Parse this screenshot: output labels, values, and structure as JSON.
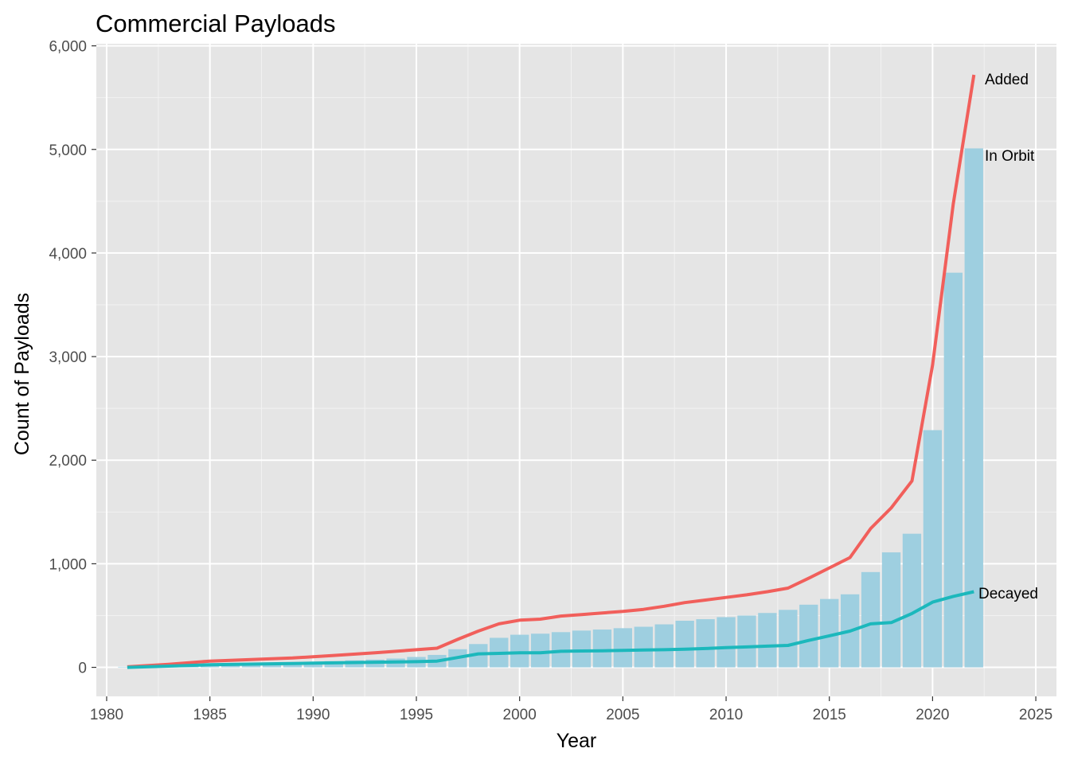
{
  "chart_data": {
    "type": "bar+line",
    "title": "Commercial Payloads",
    "xlabel": "Year",
    "ylabel": "Count of Payloads",
    "xlim": [
      1979.5,
      2026
    ],
    "ylim": [
      -280,
      6020
    ],
    "x_ticks": [
      1980,
      1985,
      1990,
      1995,
      2000,
      2005,
      2010,
      2015,
      2020,
      2025
    ],
    "x_tick_labels": [
      "1980",
      "1985",
      "1990",
      "1995",
      "2000",
      "2005",
      "2010",
      "2015",
      "2020",
      "2025"
    ],
    "y_ticks": [
      0,
      1000,
      2000,
      3000,
      4000,
      5000,
      6000
    ],
    "y_tick_labels": [
      "0",
      "1,000",
      "2,000",
      "3,000",
      "4,000",
      "5,000",
      "6,000"
    ],
    "grid": true,
    "background": "#e5e5e5",
    "bars": {
      "name": "In Orbit",
      "color": "#9ecfe0",
      "x": [
        1981,
        1982,
        1983,
        1984,
        1985,
        1986,
        1987,
        1988,
        1989,
        1990,
        1991,
        1992,
        1993,
        1994,
        1995,
        1996,
        1997,
        1998,
        1999,
        2000,
        2001,
        2002,
        2003,
        2004,
        2005,
        2006,
        2007,
        2008,
        2009,
        2010,
        2011,
        2012,
        2013,
        2014,
        2015,
        2016,
        2017,
        2018,
        2019,
        2020,
        2021,
        2022
      ],
      "values": [
        5,
        10,
        18,
        25,
        30,
        33,
        37,
        40,
        45,
        52,
        60,
        68,
        75,
        85,
        100,
        120,
        175,
        225,
        285,
        315,
        325,
        340,
        355,
        365,
        378,
        392,
        415,
        450,
        465,
        485,
        500,
        525,
        555,
        605,
        660,
        705,
        920,
        1110,
        1290,
        2290,
        3810,
        5010
      ]
    },
    "series": [
      {
        "name": "Added",
        "color": "#f15f5b",
        "x": [
          1981,
          1983,
          1985,
          1987,
          1989,
          1991,
          1993,
          1995,
          1996,
          1997,
          1998,
          1999,
          2000,
          2001,
          2002,
          2003,
          2004,
          2005,
          2006,
          2007,
          2008,
          2009,
          2010,
          2011,
          2012,
          2013,
          2014,
          2015,
          2016,
          2017,
          2018,
          2019,
          2020,
          2021,
          2022
        ],
        "values": [
          5,
          30,
          60,
          75,
          90,
          115,
          140,
          170,
          185,
          270,
          350,
          420,
          455,
          465,
          495,
          510,
          525,
          540,
          560,
          590,
          625,
          650,
          675,
          700,
          730,
          765,
          860,
          960,
          1060,
          1340,
          1540,
          1800,
          2920,
          4470,
          5720
        ]
      },
      {
        "name": "Decayed",
        "color": "#1cb8bc",
        "x": [
          1981,
          1985,
          1990,
          1995,
          1996,
          1997,
          1998,
          1999,
          2000,
          2001,
          2002,
          2003,
          2004,
          2005,
          2006,
          2007,
          2008,
          2009,
          2010,
          2011,
          2012,
          2013,
          2014,
          2015,
          2016,
          2017,
          2018,
          2019,
          2020,
          2021,
          2022
        ],
        "values": [
          0,
          25,
          40,
          55,
          60,
          95,
          130,
          135,
          140,
          140,
          155,
          158,
          160,
          163,
          167,
          170,
          175,
          182,
          190,
          197,
          205,
          212,
          260,
          305,
          350,
          420,
          432,
          520,
          630,
          685,
          730
        ]
      }
    ],
    "annotations": [
      "Added",
      "In Orbit",
      "Decayed"
    ]
  }
}
